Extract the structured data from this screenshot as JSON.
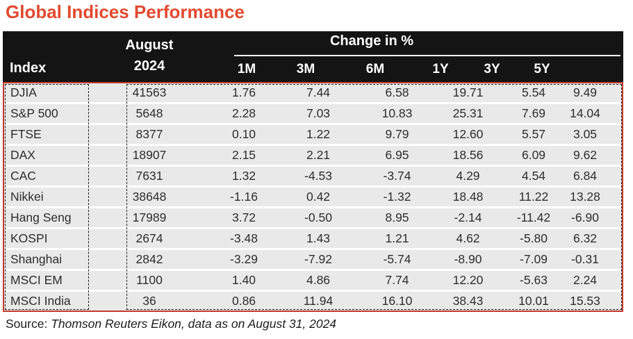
{
  "title": "Global Indices Performance",
  "colors": {
    "title_accent": "#E2492F",
    "header_background": "#141414",
    "header_text": "#FFFFFF",
    "body_border_red": "#C13B2B",
    "row_background": "#E9E9E9",
    "body_text": "#2D2D2D"
  },
  "header": {
    "index_label": "Index",
    "august_line1": "August",
    "august_line2": "2024",
    "change_label": "Change in %",
    "period_columns": [
      "1M",
      "3M",
      "6M",
      "1Y",
      "3Y",
      "5Y"
    ]
  },
  "chart_data": {
    "type": "table",
    "title": "Global Indices Performance",
    "columns": [
      "Index",
      "August 2024",
      "1M",
      "3M",
      "6M",
      "1Y",
      "3Y",
      "5Y"
    ],
    "column_group_label": "Change in %",
    "column_group_spans": [
      "1M",
      "3M",
      "6M",
      "1Y",
      "3Y",
      "5Y"
    ],
    "rows": [
      [
        "DJIA",
        "41563",
        "1.76",
        "7.44",
        "6.58",
        "19.71",
        "5.54",
        "9.49"
      ],
      [
        "S&P 500",
        "5648",
        "2.28",
        "7.03",
        "10.83",
        "25.31",
        "7.69",
        "14.04"
      ],
      [
        "FTSE",
        "8377",
        "0.10",
        "1.22",
        "9.79",
        "12.60",
        "5.57",
        "3.05"
      ],
      [
        "DAX",
        "18907",
        "2.15",
        "2.21",
        "6.95",
        "18.56",
        "6.09",
        "9.62"
      ],
      [
        "CAC",
        "7631",
        "1.32",
        "-4.53",
        "-3.74",
        "4.29",
        "4.54",
        "6.84"
      ],
      [
        "Nikkei",
        "38648",
        "-1.16",
        "0.42",
        "-1.32",
        "18.48",
        "11.22",
        "13.28"
      ],
      [
        "Hang Seng",
        "17989",
        "3.72",
        "-0.50",
        "8.95",
        "-2.14",
        "-11.42",
        "-6.90"
      ],
      [
        "KOSPI",
        "2674",
        "-3.48",
        "1.43",
        "1.21",
        "4.62",
        "-5.80",
        "6.32"
      ],
      [
        "Shanghai",
        "2842",
        "-3.29",
        "-7.92",
        "-5.74",
        "-8.90",
        "-7.09",
        "-0.31"
      ],
      [
        "MSCI EM",
        "1100",
        "1.40",
        "4.86",
        "7.74",
        "12.20",
        "-5.63",
        "2.24"
      ],
      [
        "MSCI India",
        "36",
        "0.86",
        "11.94",
        "16.10",
        "38.43",
        "10.01",
        "15.53"
      ]
    ],
    "source": "Source: Thomson Reuters Eikon, data as on August 31, 2024"
  },
  "source": {
    "prefix": "Source: ",
    "text": "Thomson Reuters Eikon, data as on August 31, 2024"
  }
}
